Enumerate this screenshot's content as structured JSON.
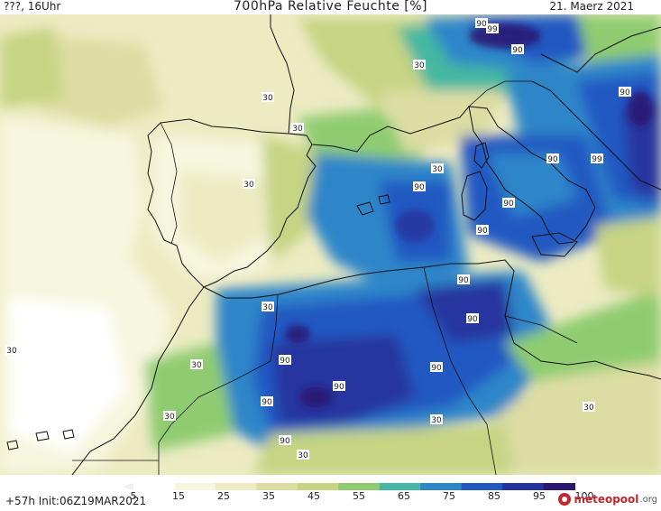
{
  "header": {
    "left": "???, 16Uhr",
    "title": "700hPa Relative Feuchte [%]",
    "date": "21. Maerz 2021"
  },
  "footer": {
    "run_info": "+57h Init:06Z19MAR2021",
    "brand": "meteopool",
    "brand_suffix": ".org"
  },
  "colorbar": {
    "labels": [
      "5",
      "15",
      "25",
      "35",
      "45",
      "55",
      "65",
      "75",
      "85",
      "95",
      "100"
    ],
    "colors": [
      "#ffffff",
      "#f7f6df",
      "#ecebc2",
      "#dcdda3",
      "#c6d483",
      "#8fcc71",
      "#44b8a2",
      "#2e86c9",
      "#2358c2",
      "#26349f",
      "#2b1670"
    ]
  },
  "map": {
    "contour_labels": [
      "90",
      "99",
      "90",
      "30",
      "90",
      "30",
      "30",
      "30",
      "90",
      "99",
      "30",
      "90",
      "90",
      "90",
      "30",
      "90",
      "90",
      "90",
      "90",
      "90",
      "30",
      "30",
      "90",
      "30",
      "90",
      "30",
      "30",
      "30"
    ]
  }
}
